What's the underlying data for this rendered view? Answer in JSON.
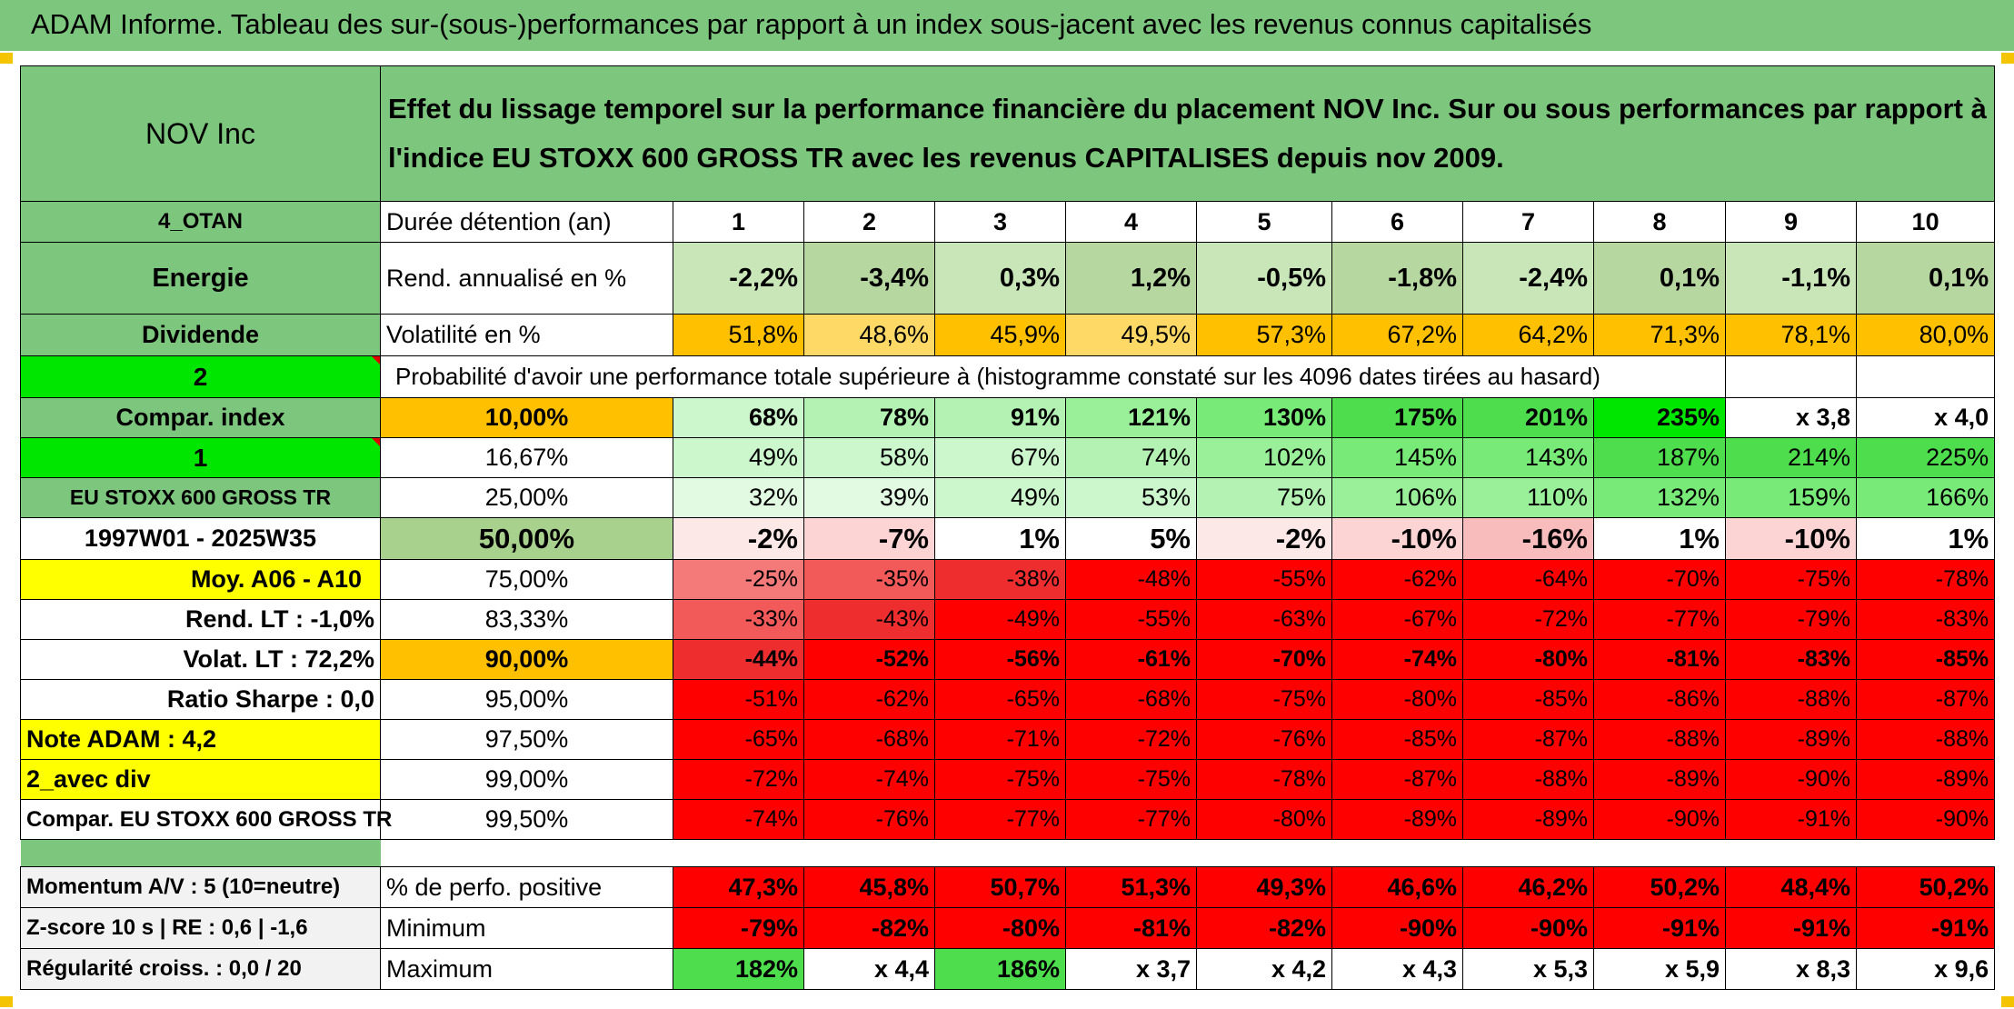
{
  "title": "ADAM Informe. Tableau des sur-(sous-)performances par rapport à un index sous-jacent avec les revenus connus capitalisés",
  "header": {
    "company": "NOV Inc",
    "description": "Effet du lissage temporel sur la performance financière du placement NOV Inc. Sur ou sous performances par rapport à l'indice EU STOXX 600 GROSS TR avec les revenus CAPITALISES depuis nov 2009."
  },
  "side_labels": {
    "otan": "4_OTAN",
    "sector": "Energie",
    "dividend": "Dividende",
    "two": "2",
    "compar_index": "Compar. index",
    "one": "1",
    "index_name": "EU STOXX 600 GROSS TR",
    "period": "1997W01 - 2025W35",
    "moy": "Moy. A06 - A10",
    "rend_lt": "Rend. LT :   -1,0%",
    "volat_lt": "Volat. LT :   72,2%",
    "sharpe": "Ratio Sharpe :    0,0",
    "note": "Note ADAM : 4,2",
    "avec_div": "2_avec div",
    "compar_full": "Compar. EU STOXX 600 GROSS TR",
    "momentum": "Momentum A/V : 5 (10=neutre)",
    "zscore": "Z-score 10 s | RE : 0,6 | -1,6",
    "regularite": "Régularité croiss. : 0,0 / 20"
  },
  "row_labels": {
    "duree": "Durée détention (an)",
    "rend": "Rend. annualisé en %",
    "volat": "Volatilité en %",
    "proba": "Probabilité d'avoir une performance totale supérieure à (histogramme constaté sur les 4096 dates tirées au hasard)",
    "pct_pos": "% de perfo. positive",
    "minimum": "Minimum",
    "maximum": "Maximum"
  },
  "years": [
    "1",
    "2",
    "3",
    "4",
    "5",
    "6",
    "7",
    "8",
    "9",
    "10"
  ],
  "rend": [
    "-2,2%",
    "-3,4%",
    "0,3%",
    "1,2%",
    "-0,5%",
    "-1,8%",
    "-2,4%",
    "0,1%",
    "-1,1%",
    "0,1%"
  ],
  "volat": [
    "51,8%",
    "48,6%",
    "45,9%",
    "49,5%",
    "57,3%",
    "67,2%",
    "64,2%",
    "71,3%",
    "78,1%",
    "80,0%"
  ],
  "percentiles": [
    {
      "p": "10,00%",
      "v": [
        "68%",
        "78%",
        "91%",
        "121%",
        "130%",
        "175%",
        "201%",
        "235%",
        "x 3,8",
        "x 4,0"
      ]
    },
    {
      "p": "16,67%",
      "v": [
        "49%",
        "58%",
        "67%",
        "74%",
        "102%",
        "145%",
        "143%",
        "187%",
        "214%",
        "225%"
      ]
    },
    {
      "p": "25,00%",
      "v": [
        "32%",
        "39%",
        "49%",
        "53%",
        "75%",
        "106%",
        "110%",
        "132%",
        "159%",
        "166%"
      ]
    },
    {
      "p": "50,00%",
      "v": [
        "-2%",
        "-7%",
        "1%",
        "5%",
        "-2%",
        "-10%",
        "-16%",
        "1%",
        "-10%",
        "1%"
      ]
    },
    {
      "p": "75,00%",
      "v": [
        "-25%",
        "-35%",
        "-38%",
        "-48%",
        "-55%",
        "-62%",
        "-64%",
        "-70%",
        "-75%",
        "-78%"
      ]
    },
    {
      "p": "83,33%",
      "v": [
        "-33%",
        "-43%",
        "-49%",
        "-55%",
        "-63%",
        "-67%",
        "-72%",
        "-77%",
        "-79%",
        "-83%"
      ]
    },
    {
      "p": "90,00%",
      "v": [
        "-44%",
        "-52%",
        "-56%",
        "-61%",
        "-70%",
        "-74%",
        "-80%",
        "-81%",
        "-83%",
        "-85%"
      ]
    },
    {
      "p": "95,00%",
      "v": [
        "-51%",
        "-62%",
        "-65%",
        "-68%",
        "-75%",
        "-80%",
        "-85%",
        "-86%",
        "-88%",
        "-87%"
      ]
    },
    {
      "p": "97,50%",
      "v": [
        "-65%",
        "-68%",
        "-71%",
        "-72%",
        "-76%",
        "-85%",
        "-87%",
        "-88%",
        "-89%",
        "-88%"
      ]
    },
    {
      "p": "99,00%",
      "v": [
        "-72%",
        "-74%",
        "-75%",
        "-75%",
        "-78%",
        "-87%",
        "-88%",
        "-89%",
        "-90%",
        "-89%"
      ]
    },
    {
      "p": "99,50%",
      "v": [
        "-74%",
        "-76%",
        "-77%",
        "-77%",
        "-80%",
        "-89%",
        "-89%",
        "-90%",
        "-91%",
        "-90%"
      ]
    }
  ],
  "pct_pos": [
    "47,3%",
    "45,8%",
    "50,7%",
    "51,3%",
    "49,3%",
    "46,6%",
    "46,2%",
    "50,2%",
    "48,4%",
    "50,2%"
  ],
  "minimum": [
    "-79%",
    "-82%",
    "-80%",
    "-81%",
    "-82%",
    "-90%",
    "-90%",
    "-91%",
    "-91%",
    "-91%"
  ],
  "maximum": [
    "182%",
    "x 4,4",
    "186%",
    "x 3,7",
    "x 4,2",
    "x 4,3",
    "x 5,3",
    "x 5,9",
    "x 8,3",
    "x 9,6"
  ],
  "colors": {
    "header_green": "#7dc67d",
    "bright_green": "#00e600",
    "yellow": "#ffff00",
    "orange": "#ffc000",
    "red": "#ff0000",
    "label_red": "#d00000"
  }
}
